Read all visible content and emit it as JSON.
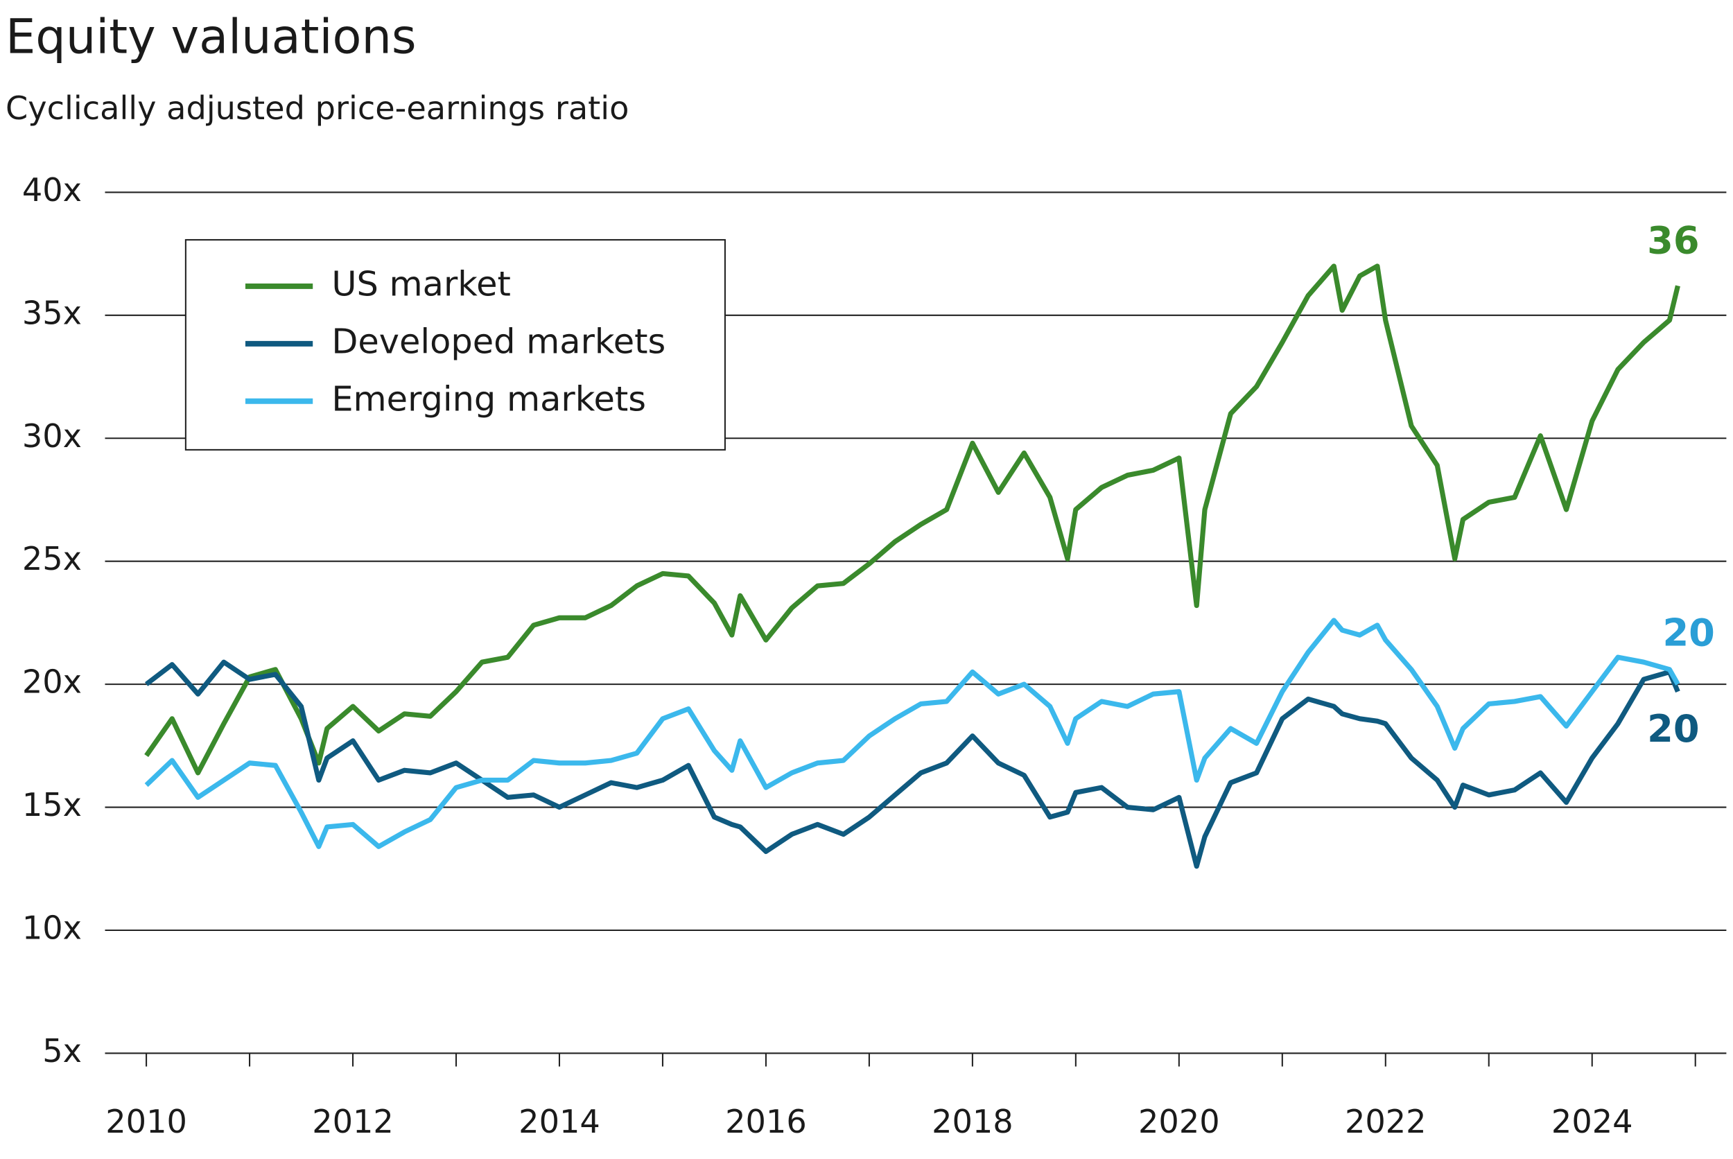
{
  "chart_data": {
    "type": "line",
    "title": "Equity valuations",
    "subtitle": "Cyclically adjusted price-earnings ratio",
    "x": [
      2010.0,
      2010.25,
      2010.5,
      2010.75,
      2011.0,
      2011.25,
      2011.5,
      2011.67,
      2011.75,
      2012.0,
      2012.25,
      2012.5,
      2012.75,
      2013.0,
      2013.25,
      2013.5,
      2013.75,
      2014.0,
      2014.25,
      2014.5,
      2014.75,
      2015.0,
      2015.25,
      2015.5,
      2015.67,
      2015.75,
      2016.0,
      2016.25,
      2016.5,
      2016.75,
      2017.0,
      2017.25,
      2017.5,
      2017.75,
      2018.0,
      2018.25,
      2018.5,
      2018.75,
      2018.92,
      2019.0,
      2019.25,
      2019.5,
      2019.75,
      2020.0,
      2020.17,
      2020.25,
      2020.5,
      2020.75,
      2021.0,
      2021.25,
      2021.5,
      2021.58,
      2021.75,
      2021.92,
      2022.0,
      2022.25,
      2022.5,
      2022.67,
      2022.75,
      2023.0,
      2023.25,
      2023.5,
      2023.75,
      2024.0,
      2024.25,
      2024.5,
      2024.75,
      2024.83
    ],
    "series": [
      {
        "name": "US market",
        "color": "#3a8a2c",
        "end_label": "36",
        "end_label_color": "#3a8a2c",
        "values": [
          17.1,
          18.6,
          16.4,
          18.4,
          20.3,
          20.6,
          18.6,
          16.8,
          18.2,
          19.1,
          18.1,
          18.8,
          18.7,
          19.7,
          20.9,
          21.1,
          22.4,
          22.7,
          22.7,
          23.2,
          24.0,
          24.5,
          24.4,
          23.3,
          22.0,
          23.6,
          21.8,
          23.1,
          24.0,
          24.1,
          24.9,
          25.8,
          26.5,
          27.1,
          29.8,
          27.8,
          29.4,
          27.6,
          25.1,
          27.1,
          28.0,
          28.5,
          28.7,
          29.2,
          23.2,
          27.1,
          31.0,
          32.1,
          33.9,
          35.8,
          37.0,
          35.2,
          36.6,
          37.0,
          34.8,
          30.5,
          28.9,
          25.1,
          26.7,
          27.4,
          27.6,
          30.1,
          27.1,
          30.7,
          32.8,
          33.9,
          34.8,
          36.2
        ]
      },
      {
        "name": "Developed markets",
        "color": "#0f5a80",
        "end_label": "20",
        "end_label_color": "#0f5a80",
        "values": [
          20.0,
          20.8,
          19.6,
          20.9,
          20.2,
          20.4,
          19.1,
          16.1,
          17.0,
          17.7,
          16.1,
          16.5,
          16.4,
          16.8,
          16.1,
          15.4,
          15.5,
          15.0,
          15.5,
          16.0,
          15.8,
          16.1,
          16.7,
          14.6,
          14.3,
          14.2,
          13.2,
          13.9,
          14.3,
          13.9,
          14.6,
          15.5,
          16.4,
          16.8,
          17.9,
          16.8,
          16.3,
          14.6,
          14.8,
          15.6,
          15.8,
          15.0,
          14.9,
          15.4,
          12.6,
          13.8,
          16.0,
          16.4,
          18.6,
          19.4,
          19.1,
          18.8,
          18.6,
          18.5,
          18.4,
          17.0,
          16.1,
          15.0,
          15.9,
          15.5,
          15.7,
          16.4,
          15.2,
          17.0,
          18.4,
          20.2,
          20.5,
          19.7
        ]
      },
      {
        "name": "Emerging markets",
        "color": "#3bb8ec",
        "end_label": "20",
        "end_label_color": "#2a9ed6",
        "values": [
          15.9,
          16.9,
          15.4,
          16.1,
          16.8,
          16.7,
          14.8,
          13.4,
          14.2,
          14.3,
          13.4,
          14.0,
          14.5,
          15.8,
          16.1,
          16.1,
          16.9,
          16.8,
          16.8,
          16.9,
          17.2,
          18.6,
          19.0,
          17.3,
          16.5,
          17.7,
          15.8,
          16.4,
          16.8,
          16.9,
          17.9,
          18.6,
          19.2,
          19.3,
          20.5,
          19.6,
          20.0,
          19.1,
          17.6,
          18.6,
          19.3,
          19.1,
          19.6,
          19.7,
          16.1,
          17.0,
          18.2,
          17.6,
          19.7,
          21.3,
          22.6,
          22.2,
          22.0,
          22.4,
          21.8,
          20.6,
          19.1,
          17.4,
          18.2,
          19.2,
          19.3,
          19.5,
          18.3,
          19.7,
          21.1,
          20.9,
          20.6,
          20.0
        ]
      }
    ],
    "xlim": [
      2009.6,
      2025.3
    ],
    "xticks": [
      2010,
      2012,
      2014,
      2016,
      2018,
      2020,
      2022,
      2024
    ],
    "xminor_ticks": [
      2011,
      2013,
      2015,
      2017,
      2019,
      2021,
      2023,
      2025
    ],
    "ylim": [
      5,
      40
    ],
    "yticks": [
      {
        "value": 5,
        "label": "5x"
      },
      {
        "value": 10,
        "label": "10x"
      },
      {
        "value": 15,
        "label": "15x"
      },
      {
        "value": 20,
        "label": "20x"
      },
      {
        "value": 25,
        "label": "25x"
      },
      {
        "value": 30,
        "label": "30x"
      },
      {
        "value": 35,
        "label": "35x"
      },
      {
        "value": 40,
        "label": "40x"
      }
    ],
    "grid": true,
    "legend": "upper left"
  }
}
